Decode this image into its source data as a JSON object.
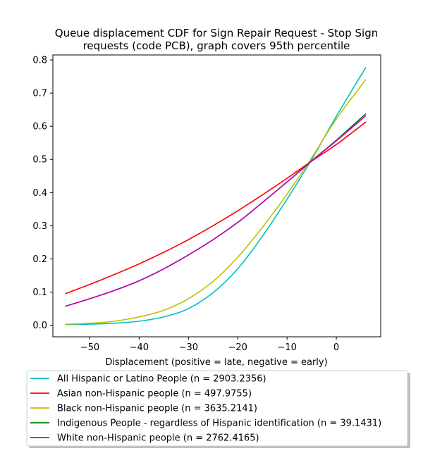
{
  "chart_data": {
    "type": "line",
    "title_lines": [
      "Queue displacement CDF for Sign Repair Request - Stop Sign",
      "requests (code PCB), graph covers 95th percentile"
    ],
    "xlabel": "Displacement (positive = late, negative = early)",
    "ylabel": "",
    "xlim": [
      -57.5,
      9
    ],
    "ylim": [
      -0.035,
      0.815
    ],
    "xticks": [
      -50,
      -40,
      -30,
      -20,
      -10,
      0
    ],
    "xtick_labels": [
      "−50",
      "−40",
      "−30",
      "−20",
      "−10",
      "0"
    ],
    "yticks": [
      0.0,
      0.1,
      0.2,
      0.3,
      0.4,
      0.5,
      0.6,
      0.7,
      0.8
    ],
    "ytick_labels": [
      "0.0",
      "0.1",
      "0.2",
      "0.3",
      "0.4",
      "0.5",
      "0.6",
      "0.7",
      "0.8"
    ],
    "grid": false,
    "legend_position": "below-plot",
    "series": [
      {
        "name": "All Hispanic or Latino People (n = 2903.2356)",
        "color": "#00bfbf",
        "x": [
          -55,
          -50,
          -45,
          -40,
          -35,
          -30,
          -25,
          -20,
          -15,
          -10,
          -5,
          0,
          6
        ],
        "y": [
          0.002,
          0.003,
          0.006,
          0.012,
          0.025,
          0.05,
          0.098,
          0.17,
          0.268,
          0.38,
          0.5,
          0.63,
          0.778
        ]
      },
      {
        "name": "Asian non-Hispanic people (n = 497.9755)",
        "color": "#ff0000",
        "x": [
          -55,
          -50,
          -45,
          -40,
          -35,
          -30,
          -25,
          -20,
          -15,
          -10,
          -5,
          0,
          6
        ],
        "y": [
          0.095,
          0.123,
          0.153,
          0.185,
          0.22,
          0.258,
          0.3,
          0.345,
          0.393,
          0.443,
          0.495,
          0.545,
          0.613
        ]
      },
      {
        "name": "Black non-Hispanic people (n = 3635.2141)",
        "color": "#bfbf00",
        "x": [
          -55,
          -50,
          -45,
          -40,
          -35,
          -30,
          -25,
          -20,
          -15,
          -10,
          -5,
          0,
          6
        ],
        "y": [
          0.003,
          0.006,
          0.012,
          0.025,
          0.045,
          0.08,
          0.132,
          0.205,
          0.295,
          0.395,
          0.505,
          0.622,
          0.741
        ]
      },
      {
        "name": "Indigenous People - regardless of Hispanic identification (n = 39.1431)",
        "color": "#008000",
        "x": [
          -55,
          -50,
          -45,
          -40,
          -35,
          -30,
          -25,
          -20,
          -15,
          -10,
          -5,
          0,
          6
        ],
        "y": [
          0.057,
          0.08,
          0.105,
          0.134,
          0.17,
          0.212,
          0.258,
          0.31,
          0.37,
          0.432,
          0.496,
          0.558,
          0.638
        ]
      },
      {
        "name": "White non-Hispanic people (n = 2762.4165)",
        "color": "#bf00bf",
        "x": [
          -55,
          -50,
          -45,
          -40,
          -35,
          -30,
          -25,
          -20,
          -15,
          -10,
          -5,
          0,
          6
        ],
        "y": [
          0.057,
          0.08,
          0.105,
          0.134,
          0.17,
          0.212,
          0.258,
          0.31,
          0.37,
          0.432,
          0.495,
          0.556,
          0.632
        ]
      }
    ]
  }
}
